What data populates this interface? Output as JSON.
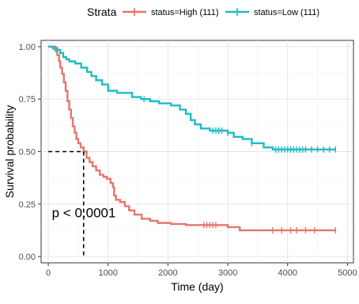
{
  "chart_data": {
    "type": "line",
    "step": true,
    "title": "",
    "xlabel": "Time (day)",
    "ylabel": "Survival probability",
    "xlim": [
      -120,
      5100
    ],
    "ylim": [
      -0.03,
      1.03
    ],
    "x_ticks": [
      0,
      1000,
      2000,
      3000,
      4000,
      5000
    ],
    "x_tick_labels": [
      "0",
      "1000",
      "2000",
      "3000",
      "4000",
      "5000"
    ],
    "y_ticks": [
      0,
      0.25,
      0.5,
      0.75,
      1.0
    ],
    "y_tick_labels": [
      "0.00",
      "0.25",
      "0.50",
      "0.75",
      "1.00"
    ],
    "grid": true,
    "legend": {
      "title": "Strata",
      "position": "top"
    },
    "annotation": {
      "text": "p < 0.0001",
      "x": 60,
      "y": 0.21
    },
    "median_survival": {
      "y": 0.5,
      "x": 590
    },
    "series": [
      {
        "name": "status=High (111)",
        "color": "#E7756B",
        "points": [
          [
            0,
            1.0
          ],
          [
            120,
            0.98
          ],
          [
            150,
            0.96
          ],
          [
            180,
            0.93
          ],
          [
            200,
            0.9
          ],
          [
            230,
            0.87
          ],
          [
            260,
            0.83
          ],
          [
            290,
            0.79
          ],
          [
            320,
            0.74
          ],
          [
            350,
            0.7
          ],
          [
            380,
            0.66
          ],
          [
            410,
            0.62
          ],
          [
            440,
            0.59
          ],
          [
            470,
            0.56
          ],
          [
            500,
            0.54
          ],
          [
            540,
            0.52
          ],
          [
            590,
            0.5
          ],
          [
            640,
            0.47
          ],
          [
            690,
            0.45
          ],
          [
            740,
            0.43
          ],
          [
            800,
            0.41
          ],
          [
            860,
            0.39
          ],
          [
            920,
            0.38
          ],
          [
            980,
            0.37
          ],
          [
            1040,
            0.35
          ],
          [
            1080,
            0.33
          ],
          [
            1100,
            0.29
          ],
          [
            1130,
            0.27
          ],
          [
            1200,
            0.26
          ],
          [
            1280,
            0.24
          ],
          [
            1350,
            0.22
          ],
          [
            1440,
            0.2
          ],
          [
            1560,
            0.18
          ],
          [
            1700,
            0.17
          ],
          [
            1830,
            0.16
          ],
          [
            2050,
            0.155
          ],
          [
            2300,
            0.15
          ],
          [
            2700,
            0.15
          ],
          [
            3000,
            0.14
          ],
          [
            3200,
            0.125
          ],
          [
            4800,
            0.125
          ]
        ],
        "censor": [
          2600,
          2650,
          2700,
          2750,
          2800,
          3750,
          3900,
          4050,
          4150,
          4300,
          4450,
          4800
        ]
      },
      {
        "name": "status=Low (111)",
        "color": "#1DBDC2",
        "points": [
          [
            0,
            1.0
          ],
          [
            80,
            0.99
          ],
          [
            150,
            0.985
          ],
          [
            200,
            0.97
          ],
          [
            250,
            0.95
          ],
          [
            300,
            0.94
          ],
          [
            350,
            0.93
          ],
          [
            450,
            0.92
          ],
          [
            550,
            0.9
          ],
          [
            650,
            0.88
          ],
          [
            720,
            0.86
          ],
          [
            800,
            0.84
          ],
          [
            900,
            0.82
          ],
          [
            1000,
            0.79
          ],
          [
            1150,
            0.78
          ],
          [
            1400,
            0.76
          ],
          [
            1550,
            0.75
          ],
          [
            1700,
            0.74
          ],
          [
            1850,
            0.73
          ],
          [
            2050,
            0.72
          ],
          [
            2200,
            0.7
          ],
          [
            2300,
            0.68
          ],
          [
            2380,
            0.65
          ],
          [
            2450,
            0.63
          ],
          [
            2550,
            0.61
          ],
          [
            2700,
            0.6
          ],
          [
            3000,
            0.59
          ],
          [
            3100,
            0.57
          ],
          [
            3250,
            0.56
          ],
          [
            3400,
            0.54
          ],
          [
            3600,
            0.52
          ],
          [
            3750,
            0.51
          ],
          [
            4800,
            0.51
          ]
        ],
        "censor": [
          150,
          1600,
          2750,
          2800,
          2850,
          2900,
          3000,
          3400,
          3800,
          3850,
          3900,
          3950,
          4000,
          4050,
          4100,
          4150,
          4200,
          4250,
          4300,
          4400,
          4500,
          4600,
          4700,
          4800
        ]
      }
    ]
  }
}
